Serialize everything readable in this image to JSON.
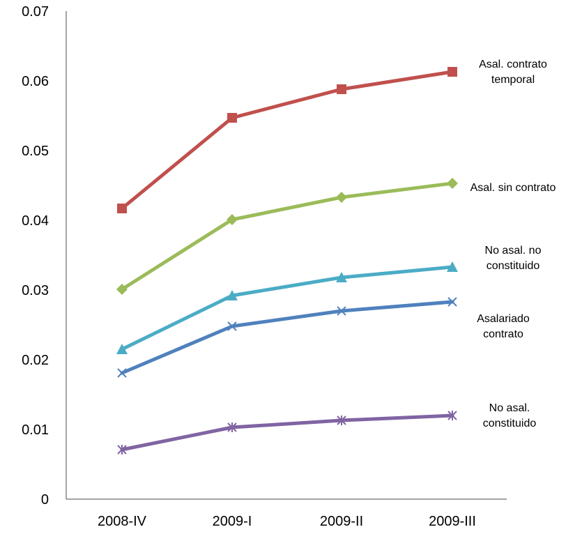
{
  "chart_data": {
    "type": "line",
    "categories": [
      "2008-IV",
      "2009-I",
      "2009-II",
      "2009-III"
    ],
    "ylim": [
      0,
      0.07
    ],
    "yticks": [
      "0",
      "0.01",
      "0.02",
      "0.03",
      "0.04",
      "0.05",
      "0.06",
      "0.07"
    ],
    "grid": false,
    "legend": "inline-right",
    "series": [
      {
        "name": "Asal. contrato temporal",
        "label_lines": [
          "Asal. contrato",
          "temporal"
        ],
        "color": "#c0504d",
        "marker": "square",
        "values": [
          0.0417,
          0.0547,
          0.0588,
          0.0613
        ]
      },
      {
        "name": "Asal. sin contrato",
        "label_lines": [
          "Asal. sin contrato"
        ],
        "color": "#9bbb59",
        "marker": "diamond",
        "values": [
          0.0301,
          0.0401,
          0.0433,
          0.0453
        ]
      },
      {
        "name": "No asal. no constituido",
        "label_lines": [
          "No asal. no",
          "constituido"
        ],
        "color": "#4bacc6",
        "marker": "triangle",
        "values": [
          0.0215,
          0.0292,
          0.0318,
          0.0333
        ]
      },
      {
        "name": "Asalariado contrato",
        "label_lines": [
          "Asalariado",
          "contrato"
        ],
        "color": "#4f81bd",
        "marker": "x",
        "values": [
          0.0181,
          0.0248,
          0.027,
          0.0283
        ]
      },
      {
        "name": "No asal. constituido",
        "label_lines": [
          "No asal.",
          "constituido"
        ],
        "color": "#8064a2",
        "marker": "star",
        "values": [
          0.0071,
          0.0103,
          0.0113,
          0.012
        ]
      }
    ]
  }
}
